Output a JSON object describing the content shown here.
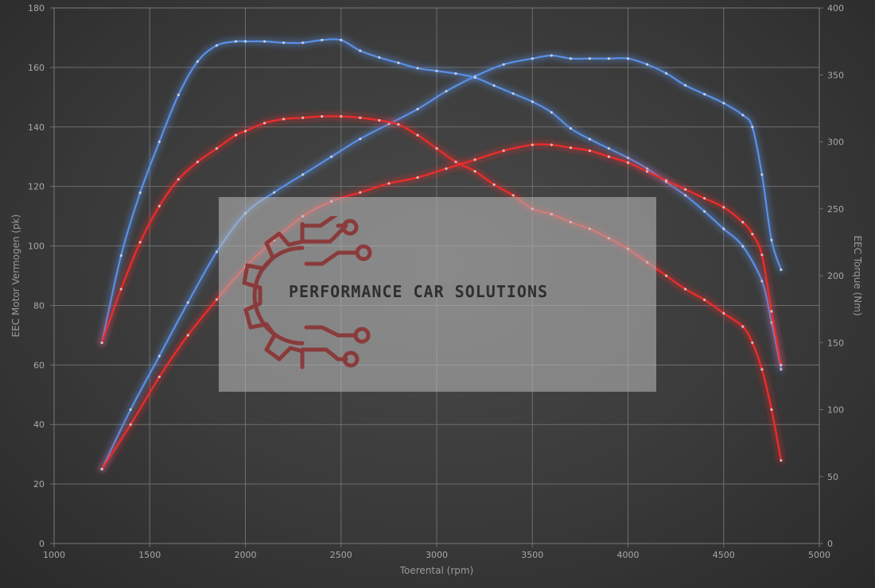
{
  "chart_data": {
    "type": "line",
    "title": "",
    "xlabel": "Toerental (rpm)",
    "ylabel_left": "EEC Motor Vermogen (pk)",
    "ylabel_right": "EEC Torque (Nm)",
    "xlim": [
      1000,
      5000
    ],
    "ylim_left": [
      0,
      180
    ],
    "ylim_right": [
      0,
      400
    ],
    "x_ticks": [
      "1000",
      "1500",
      "2000",
      "2500",
      "3000",
      "3500",
      "4000",
      "4500",
      "5000"
    ],
    "y_left_ticks": [
      "0",
      "20",
      "40",
      "60",
      "80",
      "100",
      "120",
      "140",
      "160",
      "180"
    ],
    "y_right_ticks": [
      "0",
      "50",
      "100",
      "150",
      "200",
      "250",
      "300",
      "350",
      "400"
    ],
    "grid": true,
    "colors": {
      "tuned": "#5a90e6",
      "stock": "#ee2b2b"
    },
    "series": [
      {
        "axis": "left",
        "color": "tuned",
        "x": [
          1250,
          1400,
          1550,
          1700,
          1850,
          2000,
          2150,
          2300,
          2450,
          2600,
          2750,
          2900,
          3050,
          3200,
          3350,
          3500,
          3600,
          3700,
          3800,
          3900,
          4000,
          4100,
          4200,
          4300,
          4400,
          4500,
          4600,
          4650,
          4700,
          4750,
          4800
        ],
        "y": [
          25,
          45,
          63,
          81,
          98,
          111,
          118,
          124,
          130,
          136,
          141,
          146,
          152,
          157,
          161,
          163,
          164,
          163,
          163,
          163,
          163,
          161,
          158,
          154,
          151,
          148,
          144,
          140,
          124,
          102,
          92
        ]
      },
      {
        "axis": "right",
        "color": "tuned",
        "x": [
          1250,
          1350,
          1450,
          1550,
          1650,
          1750,
          1850,
          1950,
          2000,
          2100,
          2200,
          2300,
          2400,
          2500,
          2600,
          2700,
          2800,
          2900,
          3000,
          3100,
          3200,
          3300,
          3400,
          3500,
          3600,
          3700,
          3800,
          3900,
          4000,
          4100,
          4200,
          4300,
          4400,
          4500,
          4600,
          4700,
          4750,
          4800
        ],
        "y": [
          150,
          215,
          262,
          300,
          335,
          360,
          372,
          375,
          375,
          375,
          374,
          374,
          376,
          376,
          368,
          363,
          359,
          355,
          353,
          351,
          348,
          342,
          336,
          330,
          322,
          310,
          302,
          295,
          288,
          280,
          270,
          260,
          248,
          235,
          222,
          196,
          165,
          130
        ]
      },
      {
        "axis": "left",
        "color": "stock",
        "x": [
          1250,
          1400,
          1550,
          1700,
          1850,
          2000,
          2150,
          2300,
          2450,
          2600,
          2750,
          2900,
          3050,
          3200,
          3350,
          3500,
          3600,
          3700,
          3800,
          3900,
          4000,
          4100,
          4200,
          4300,
          4400,
          4500,
          4600,
          4650,
          4700,
          4750,
          4800
        ],
        "y": [
          25,
          40,
          56,
          70,
          82,
          93,
          102,
          110,
          115,
          118,
          121,
          123,
          126,
          129,
          132,
          134,
          134,
          133,
          132,
          130,
          128,
          125,
          122,
          119,
          116,
          113,
          108,
          104,
          97,
          78,
          60
        ]
      },
      {
        "axis": "right",
        "color": "stock",
        "x": [
          1250,
          1350,
          1450,
          1550,
          1650,
          1750,
          1850,
          1950,
          2000,
          2100,
          2200,
          2300,
          2400,
          2500,
          2600,
          2700,
          2800,
          2900,
          3000,
          3100,
          3200,
          3300,
          3400,
          3500,
          3600,
          3700,
          3800,
          3900,
          4000,
          4100,
          4200,
          4300,
          4400,
          4500,
          4600,
          4650,
          4700,
          4750,
          4800
        ],
        "y": [
          150,
          190,
          225,
          252,
          272,
          285,
          295,
          305,
          308,
          314,
          317,
          318,
          319,
          319,
          318,
          316,
          313,
          305,
          295,
          285,
          278,
          268,
          260,
          250,
          246,
          240,
          235,
          228,
          220,
          210,
          200,
          190,
          182,
          172,
          162,
          150,
          130,
          100,
          62
        ]
      }
    ]
  },
  "watermark": {
    "text": "PERFORMANCE CAR SOLUTIONS",
    "colors": {
      "panel": "#bebebe",
      "logo": "#8b2e2e",
      "text": "#2f2f2f"
    }
  }
}
